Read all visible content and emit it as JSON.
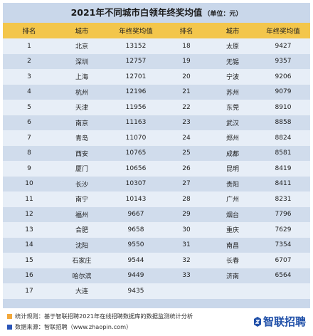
{
  "title": "2021年不同城市白领年终奖均值",
  "unit": "（单位：元）",
  "colors": {
    "header": "#f3c64b",
    "row_light": "#e7eef7",
    "row_dark": "#d0dcec",
    "note_orange": "#f3a83b",
    "note_blue": "#2a55b8",
    "logo_blue": "#1f4fa8"
  },
  "chart_data": {
    "type": "table",
    "columns": [
      "排名",
      "城市",
      "年终奖均值",
      "排名",
      "城市",
      "年终奖均值"
    ],
    "rows": [
      [
        1,
        "北京",
        13152,
        18,
        "太原",
        9427
      ],
      [
        2,
        "深圳",
        12757,
        19,
        "无锡",
        9357
      ],
      [
        3,
        "上海",
        12701,
        20,
        "宁波",
        9206
      ],
      [
        4,
        "杭州",
        12196,
        21,
        "苏州",
        9079
      ],
      [
        5,
        "天津",
        11956,
        22,
        "东莞",
        8910
      ],
      [
        6,
        "南京",
        11163,
        23,
        "武汉",
        8858
      ],
      [
        7,
        "青岛",
        11070,
        24,
        "郑州",
        8824
      ],
      [
        8,
        "西安",
        10765,
        25,
        "成都",
        8581
      ],
      [
        9,
        "厦门",
        10656,
        26,
        "昆明",
        8419
      ],
      [
        10,
        "长沙",
        10307,
        27,
        "贵阳",
        8411
      ],
      [
        11,
        "南宁",
        10143,
        28,
        "广州",
        8231
      ],
      [
        12,
        "福州",
        9667,
        29,
        "烟台",
        7796
      ],
      [
        13,
        "合肥",
        9658,
        30,
        "重庆",
        7629
      ],
      [
        14,
        "沈阳",
        9550,
        31,
        "南昌",
        7354
      ],
      [
        15,
        "石家庄",
        9544,
        32,
        "长春",
        6707
      ],
      [
        16,
        "哈尔滨",
        9449,
        33,
        "济南",
        6564
      ],
      [
        17,
        "大连",
        9435,
        "",
        "",
        ""
      ]
    ]
  },
  "footer": {
    "note1": "统计规则：基于智联招聘2021年在线招聘数据库的数据监测统计分析",
    "note2": "数据来源：智联招聘（www.zhaopin.com）",
    "logo_text": "智联招聘",
    "logo_icon": "zhaopin-logo-icon"
  }
}
